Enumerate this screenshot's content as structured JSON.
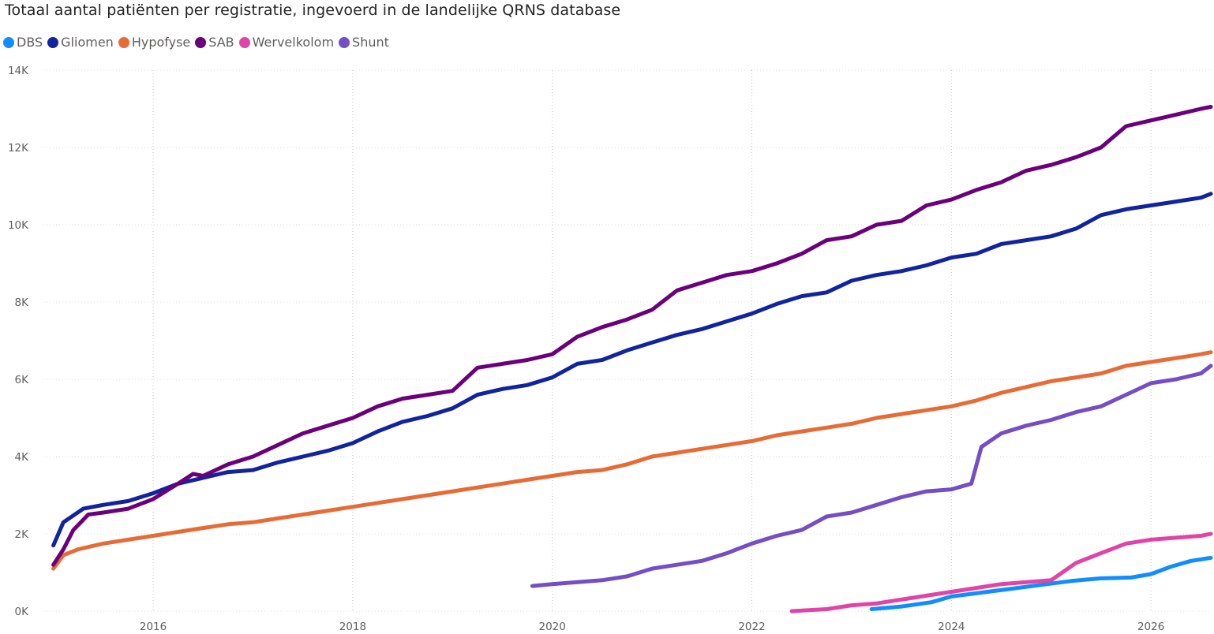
{
  "chart_data": {
    "type": "line",
    "title": "Totaal aantal patiënten per registratie, ingevoerd in de landelijke QRNS database",
    "legend_position": "top-left",
    "grid": "vertical dotted gridlines at year ticks",
    "x_axis": {
      "unit": "year",
      "range": [
        2014.9,
        2026.6
      ],
      "ticks": [
        2016,
        2018,
        2020,
        2022,
        2024,
        2026
      ],
      "tick_labels": [
        "2016",
        "2018",
        "2020",
        "2022",
        "2024",
        "2026"
      ]
    },
    "y_axis": {
      "range": [
        0,
        14000
      ],
      "ticks": [
        0,
        2000,
        4000,
        6000,
        8000,
        10000,
        12000,
        14000
      ],
      "tick_labels": [
        "0K",
        "2K",
        "4K",
        "6K",
        "8K",
        "10K",
        "12K",
        "14K"
      ]
    },
    "series": [
      {
        "name": "DBS",
        "color": "#118dff",
        "x": [
          2023.2,
          2023.5,
          2023.8,
          2024.0,
          2024.3,
          2024.6,
          2024.9,
          2025.2,
          2025.5,
          2025.8,
          2026.0,
          2026.2,
          2026.4,
          2026.6
        ],
        "y": [
          50,
          120,
          230,
          380,
          480,
          580,
          680,
          780,
          850,
          870,
          960,
          1150,
          1300,
          1380
        ]
      },
      {
        "name": "Gliomen",
        "color": "#12239e",
        "x": [
          2015.0,
          2015.1,
          2015.3,
          2015.5,
          2015.75,
          2016.0,
          2016.25,
          2016.5,
          2016.75,
          2017.0,
          2017.25,
          2017.5,
          2017.75,
          2018.0,
          2018.25,
          2018.5,
          2018.75,
          2019.0,
          2019.25,
          2019.5,
          2019.75,
          2020.0,
          2020.25,
          2020.5,
          2020.75,
          2021.0,
          2021.25,
          2021.5,
          2021.75,
          2022.0,
          2022.25,
          2022.5,
          2022.75,
          2023.0,
          2023.25,
          2023.5,
          2023.75,
          2024.0,
          2024.25,
          2024.5,
          2024.75,
          2025.0,
          2025.25,
          2025.5,
          2025.75,
          2026.0,
          2026.25,
          2026.5,
          2026.6
        ],
        "y": [
          1700,
          2300,
          2650,
          2750,
          2850,
          3050,
          3300,
          3450,
          3600,
          3650,
          3850,
          4000,
          4150,
          4350,
          4650,
          4900,
          5050,
          5250,
          5600,
          5750,
          5850,
          6050,
          6400,
          6500,
          6750,
          6950,
          7150,
          7300,
          7500,
          7700,
          7950,
          8150,
          8250,
          8550,
          8700,
          8800,
          8950,
          9150,
          9250,
          9500,
          9600,
          9700,
          9900,
          10250,
          10400,
          10500,
          10600,
          10700,
          10800
        ]
      },
      {
        "name": "Hypofyse",
        "color": "#e66c37",
        "x": [
          2015.0,
          2015.1,
          2015.25,
          2015.5,
          2015.75,
          2016.0,
          2016.25,
          2016.5,
          2016.75,
          2017.0,
          2017.25,
          2017.5,
          2017.75,
          2018.0,
          2018.25,
          2018.5,
          2018.75,
          2019.0,
          2019.25,
          2019.5,
          2019.75,
          2020.0,
          2020.25,
          2020.5,
          2020.75,
          2021.0,
          2021.25,
          2021.5,
          2021.75,
          2022.0,
          2022.25,
          2022.5,
          2022.75,
          2023.0,
          2023.25,
          2023.5,
          2023.75,
          2024.0,
          2024.25,
          2024.5,
          2024.75,
          2025.0,
          2025.25,
          2025.5,
          2025.75,
          2026.0,
          2026.25,
          2026.5,
          2026.6
        ],
        "y": [
          1100,
          1450,
          1600,
          1750,
          1850,
          1950,
          2050,
          2150,
          2250,
          2300,
          2400,
          2500,
          2600,
          2700,
          2800,
          2900,
          3000,
          3100,
          3200,
          3300,
          3400,
          3500,
          3600,
          3650,
          3800,
          4000,
          4100,
          4200,
          4300,
          4400,
          4550,
          4650,
          4750,
          4850,
          5000,
          5100,
          5200,
          5300,
          5450,
          5650,
          5800,
          5950,
          6050,
          6150,
          6350,
          6450,
          6550,
          6650,
          6700
        ]
      },
      {
        "name": "SAB",
        "color": "#6b007b",
        "x": [
          2015.0,
          2015.1,
          2015.2,
          2015.35,
          2015.5,
          2015.75,
          2016.0,
          2016.25,
          2016.4,
          2016.5,
          2016.75,
          2017.0,
          2017.25,
          2017.5,
          2017.75,
          2018.0,
          2018.25,
          2018.5,
          2018.75,
          2019.0,
          2019.25,
          2019.5,
          2019.75,
          2020.0,
          2020.25,
          2020.5,
          2020.75,
          2021.0,
          2021.25,
          2021.5,
          2021.75,
          2022.0,
          2022.25,
          2022.5,
          2022.75,
          2023.0,
          2023.25,
          2023.5,
          2023.75,
          2024.0,
          2024.25,
          2024.5,
          2024.75,
          2025.0,
          2025.25,
          2025.5,
          2025.75,
          2026.0,
          2026.25,
          2026.5,
          2026.6
        ],
        "y": [
          1200,
          1600,
          2100,
          2500,
          2550,
          2650,
          2900,
          3300,
          3550,
          3500,
          3800,
          4000,
          4300,
          4600,
          4800,
          5000,
          5300,
          5500,
          5600,
          5700,
          6300,
          6400,
          6500,
          6650,
          7100,
          7350,
          7550,
          7800,
          8300,
          8500,
          8700,
          8800,
          9000,
          9250,
          9600,
          9700,
          10000,
          10100,
          10500,
          10650,
          10900,
          11100,
          11400,
          11550,
          11750,
          12000,
          12550,
          12700,
          12850,
          13000,
          13050
        ]
      },
      {
        "name": "Wervelkolom",
        "color": "#e044a7",
        "x": [
          2022.4,
          2022.75,
          2023.0,
          2023.25,
          2023.5,
          2023.75,
          2024.0,
          2024.25,
          2024.5,
          2024.75,
          2025.0,
          2025.25,
          2025.5,
          2025.75,
          2026.0,
          2026.25,
          2026.5,
          2026.6
        ],
        "y": [
          0,
          50,
          150,
          200,
          300,
          400,
          500,
          600,
          700,
          750,
          800,
          1250,
          1500,
          1750,
          1850,
          1900,
          1950,
          2000
        ]
      },
      {
        "name": "Shunt",
        "color": "#744ec2",
        "x": [
          2019.8,
          2020.0,
          2020.25,
          2020.5,
          2020.75,
          2021.0,
          2021.25,
          2021.5,
          2021.75,
          2022.0,
          2022.25,
          2022.5,
          2022.75,
          2023.0,
          2023.25,
          2023.5,
          2023.75,
          2024.0,
          2024.2,
          2024.3,
          2024.5,
          2024.75,
          2025.0,
          2025.25,
          2025.5,
          2025.75,
          2026.0,
          2026.25,
          2026.5,
          2026.6
        ],
        "y": [
          650,
          700,
          750,
          800,
          900,
          1100,
          1200,
          1300,
          1500,
          1750,
          1950,
          2100,
          2450,
          2550,
          2750,
          2950,
          3100,
          3150,
          3300,
          4250,
          4600,
          4800,
          4950,
          5150,
          5300,
          5600,
          5900,
          6000,
          6150,
          6350
        ]
      }
    ]
  }
}
